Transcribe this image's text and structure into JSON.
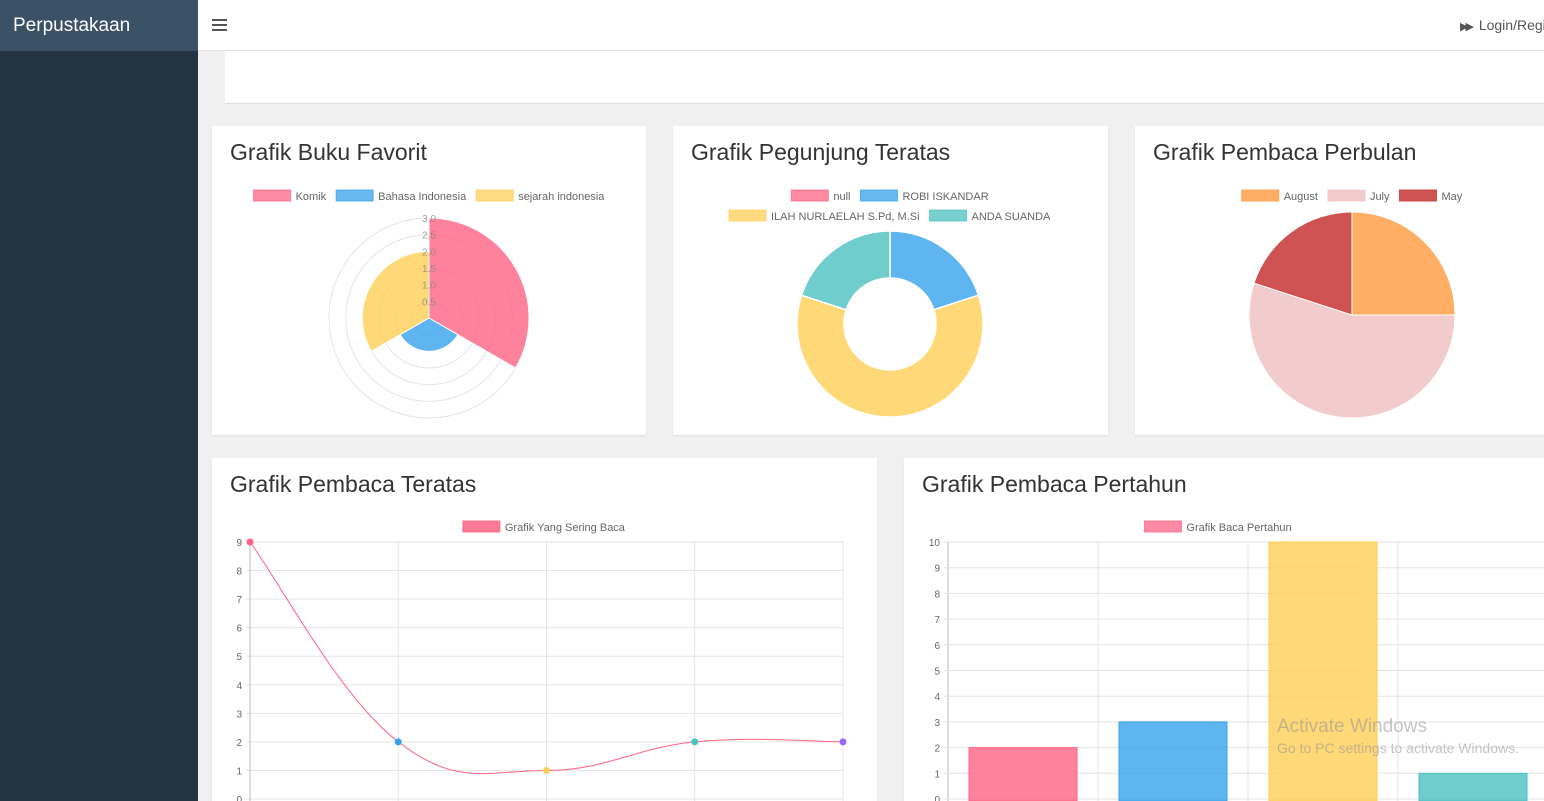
{
  "app": {
    "brand": "Perpustakaan",
    "login_label": "Login/Regi"
  },
  "watermark": {
    "line1": "Activate Windows",
    "line2": "Go to PC settings to activate Windows."
  },
  "cards": {
    "favorit": {
      "title": "Grafik Buku Favorit"
    },
    "pengunjung": {
      "title": "Grafik Pegunjung Teratas"
    },
    "perbulan": {
      "title": "Grafik Pembaca Perbulan"
    },
    "teratas": {
      "title": "Grafik Pembaca Teratas"
    },
    "pertahun": {
      "title": "Grafik Pembaca Pertahun"
    }
  },
  "chart_data": [
    {
      "id": "favorit",
      "type": "polarArea",
      "title": "Grafik Buku Favorit",
      "categories": [
        "Komik",
        "Bahasa Indonesia",
        "sejarah indonesia"
      ],
      "values": [
        3,
        1,
        2
      ],
      "colors": [
        "#ff6384",
        "#36a2eb",
        "#ffce56"
      ],
      "rlim": [
        0,
        3
      ],
      "rticks": [
        "0.5",
        "1.0",
        "1.5",
        "2.0",
        "2.5",
        "3.0"
      ],
      "legend": "top"
    },
    {
      "id": "pengunjung",
      "type": "doughnut",
      "title": "Grafik Pegunjung Teratas",
      "categories": [
        "null",
        "ROBI ISKANDAR",
        "ILAH NURLAELAH S.Pd, M.Si",
        "ANDA SUANDA"
      ],
      "values": [
        0,
        1,
        3,
        1
      ],
      "colors": [
        "#ff6384",
        "#36a2eb",
        "#ffce56",
        "#4bc0c0"
      ],
      "legend": "top"
    },
    {
      "id": "perbulan",
      "type": "pie",
      "title": "Grafik Pembaca Perbulan",
      "categories": [
        "August",
        "July",
        "May"
      ],
      "values": [
        1,
        2.2,
        0.8
      ],
      "colors": [
        "#ffa552",
        "#f1c7c7",
        "#c9403f"
      ],
      "legend": "top"
    },
    {
      "id": "teratas",
      "type": "line",
      "title": "Grafik Pembaca Teratas",
      "series": [
        {
          "name": "Grafik Yang Sering Baca",
          "values": [
            9,
            2,
            1,
            2,
            2
          ]
        }
      ],
      "point_colors": [
        "#ff6384",
        "#36a2eb",
        "#ffce56",
        "#4bc0c0",
        "#9966ff"
      ],
      "line_color": "#ff6384",
      "ylim": [
        0,
        9
      ],
      "yticks": [
        "0",
        "1",
        "2",
        "3",
        "4",
        "5",
        "6",
        "7",
        "8",
        "9"
      ],
      "grid": true,
      "legend": "top"
    },
    {
      "id": "pertahun",
      "type": "bar",
      "title": "Grafik Pembaca Pertahun",
      "series": [
        {
          "name": "Grafik Baca Pertahun",
          "values": [
            2,
            3,
            10,
            1
          ]
        }
      ],
      "colors": [
        "#ff6384",
        "#36a2eb",
        "#ffce56",
        "#4bc0c0"
      ],
      "ylim": [
        0,
        10
      ],
      "yticks": [
        "0",
        "1",
        "2",
        "3",
        "4",
        "5",
        "6",
        "7",
        "8",
        "9",
        "10"
      ],
      "grid": true,
      "legend": "top"
    }
  ]
}
